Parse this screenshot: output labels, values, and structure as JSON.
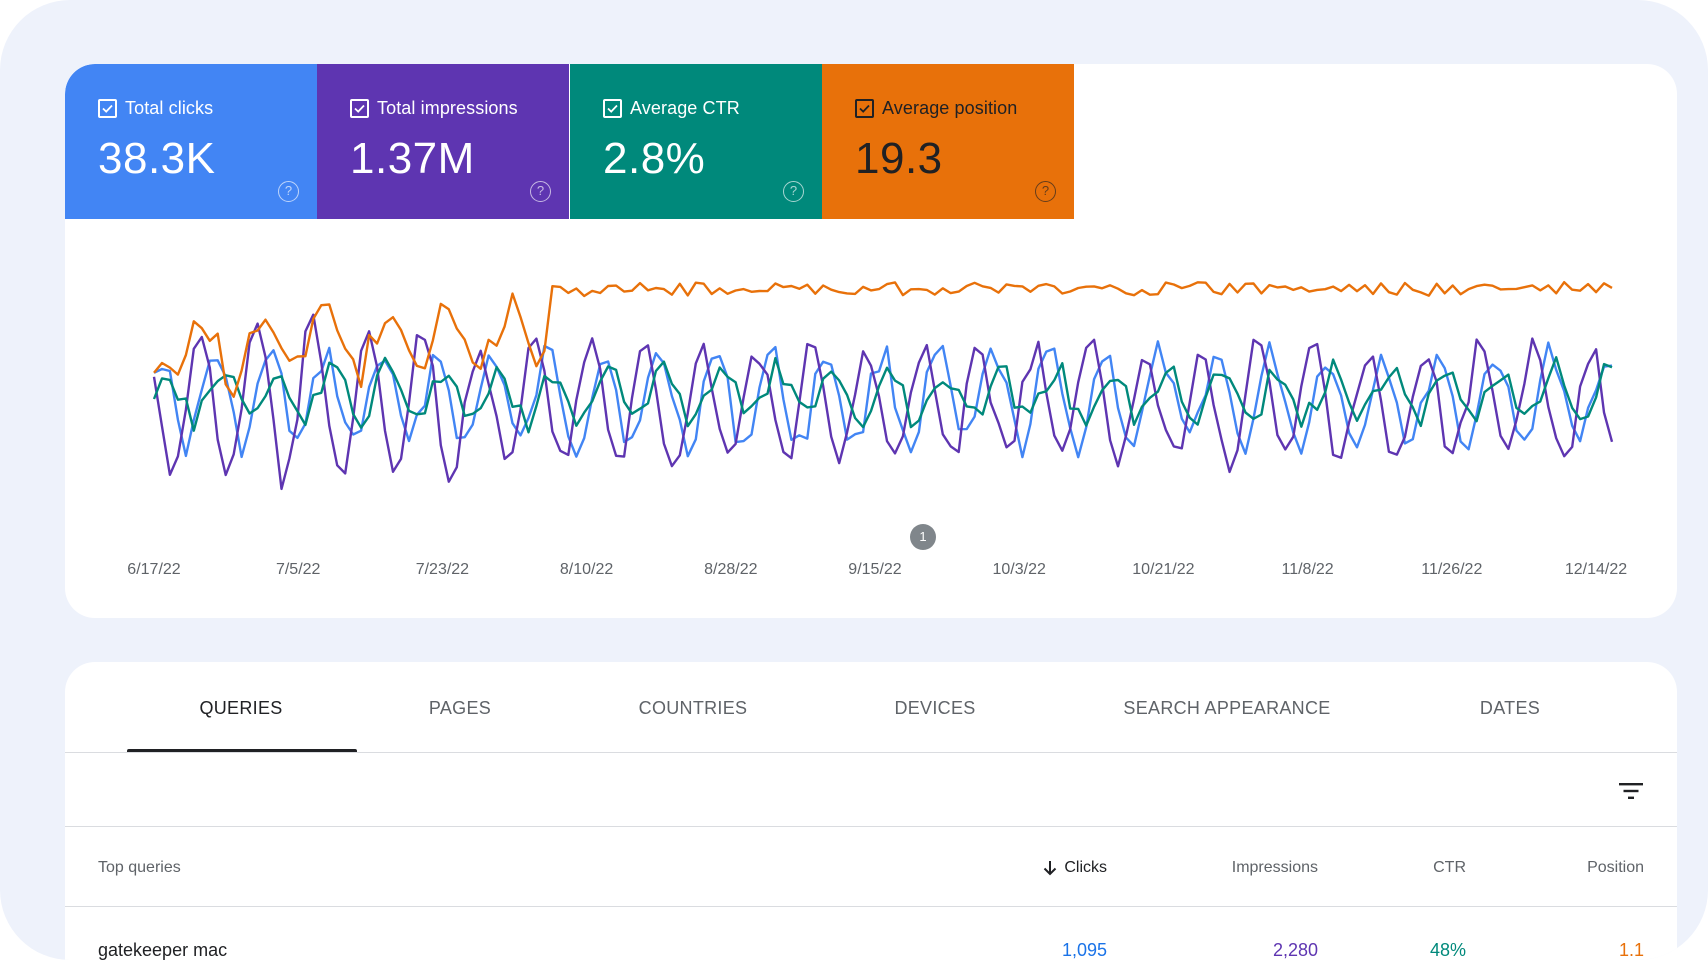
{
  "metrics": [
    {
      "label": "Total clicks",
      "value": "38.3K",
      "color": "#4285f4"
    },
    {
      "label": "Total impressions",
      "value": "1.37M",
      "color": "#5e35b1"
    },
    {
      "label": "Average CTR",
      "value": "2.8%",
      "color": "#00897b"
    },
    {
      "label": "Average position",
      "value": "19.3",
      "color": "#e8710a"
    }
  ],
  "annotation_marker": "1",
  "chart_data": {
    "type": "line",
    "x_tick_labels": [
      "6/17/22",
      "7/5/22",
      "7/23/22",
      "8/10/22",
      "8/28/22",
      "9/15/22",
      "10/3/22",
      "10/21/22",
      "11/8/22",
      "11/26/22",
      "12/14/22"
    ],
    "x_range": [
      "6/15/22",
      "12/16/22"
    ],
    "y_axis": "hidden",
    "grid": false,
    "series": [
      {
        "name": "Total clicks",
        "color": "#4285f4",
        "shape": "weekly oscillation, values not printed"
      },
      {
        "name": "Total impressions",
        "color": "#5e35b1",
        "shape": "weekly oscillation, values not printed"
      },
      {
        "name": "Average CTR",
        "color": "#00897b",
        "shape": "weekly oscillation, values not printed"
      },
      {
        "name": "Average position",
        "color": "#e8710a",
        "shape": "rising then flat, values not printed"
      }
    ]
  },
  "tabs": [
    {
      "label": "QUERIES",
      "active": true
    },
    {
      "label": "PAGES",
      "active": false
    },
    {
      "label": "COUNTRIES",
      "active": false
    },
    {
      "label": "DEVICES",
      "active": false
    },
    {
      "label": "SEARCH APPEARANCE",
      "active": false
    },
    {
      "label": "DATES",
      "active": false
    }
  ],
  "filter_icon": "filter-list-icon",
  "table": {
    "headers": {
      "query": "Top queries",
      "clicks": "Clicks",
      "impressions": "Impressions",
      "ctr": "CTR",
      "position": "Position"
    },
    "sort_icon": "arrow-down-icon",
    "rows": [
      {
        "query": "gatekeeper mac",
        "clicks": "1,095",
        "impressions": "2,280",
        "ctr": "48%",
        "position": "1.1"
      }
    ]
  }
}
